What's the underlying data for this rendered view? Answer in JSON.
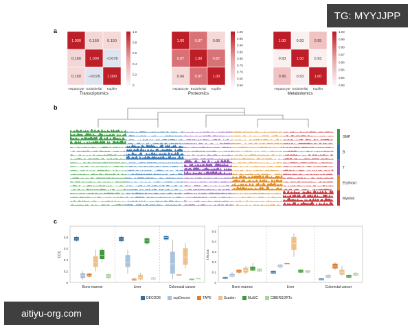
{
  "watermarks": {
    "top_right": "TG: MYYJJPP",
    "bottom_left": "aitiyu-org.com"
  },
  "panels": {
    "a": "a",
    "b": "b",
    "c": "c"
  },
  "chart_data": [
    {
      "type": "heatmap",
      "title": "Transcriptomics",
      "rows": [
        "Hepatocyte",
        "Endothelial",
        "Kupffer"
      ],
      "cols": [
        "Hepatocyte",
        "Endothelial",
        "Kupffer"
      ],
      "values": [
        [
          1.0,
          0.16,
          0.15
        ],
        [
          0.16,
          1.0,
          -0.078
        ],
        [
          0.15,
          -0.078,
          1.0
        ]
      ],
      "labels": [
        [
          "1.000",
          "0.160",
          "0.150"
        ],
        [
          "0.160",
          "1.000",
          "−0.078"
        ],
        [
          "0.150",
          "−0.078",
          "1.000"
        ]
      ],
      "colorbar": {
        "min": 0,
        "max": 1.0,
        "ticks": [
          "1.0",
          "0.8",
          "0.6",
          "0.4",
          "0.2",
          "0"
        ]
      }
    },
    {
      "type": "heatmap",
      "title": "Proteomics",
      "rows": [
        "Hepatocyte",
        "Endothelial",
        "Kupffer"
      ],
      "cols": [
        "Hepatocyte",
        "Endothelial",
        "Kupffer"
      ],
      "values": [
        [
          1.0,
          0.87,
          0.66
        ],
        [
          0.87,
          1.0,
          0.87
        ],
        [
          0.66,
          0.87,
          1.0
        ]
      ],
      "labels": [
        [
          "1.00",
          "0.87",
          "0.66"
        ],
        [
          "0.87",
          "1.00",
          "0.87"
        ],
        [
          "0.66",
          "0.87",
          "1.00"
        ]
      ],
      "colorbar": {
        "min": 0.6,
        "max": 1.0,
        "ticks": [
          "1.00",
          "0.95",
          "0.90",
          "0.85",
          "0.80",
          "0.75",
          "0.70",
          "0.65",
          "0.60"
        ]
      }
    },
    {
      "type": "heatmap",
      "title": "Metabolomics",
      "rows": [
        "Hepatocyte",
        "Endothelial",
        "Kupffer"
      ],
      "cols": [
        "Hepatocyte",
        "Endothelial",
        "Kupffer"
      ],
      "values": [
        [
          1.0,
          0.93,
          0.95
        ],
        [
          0.93,
          1.0,
          0.93
        ],
        [
          0.95,
          0.93,
          1.0
        ]
      ],
      "labels": [
        [
          "1.00",
          "0.93",
          "0.95"
        ],
        [
          "0.93",
          "1.00",
          "0.93"
        ],
        [
          "0.95",
          "0.93",
          "1.00"
        ]
      ],
      "colorbar": {
        "min": 0.93,
        "max": 1.0,
        "ticks": [
          "1.00",
          "0.99",
          "0.98",
          "0.97",
          "0.96",
          "0.95",
          "0.94",
          "0.93"
        ]
      }
    },
    {
      "type": "area",
      "cell_groups": [
        {
          "name": "GMP",
          "color": "#3a9a43"
        },
        {
          "name": "B",
          "color": "#2f74b5"
        },
        {
          "name": "T",
          "color": "#8e5ab5"
        },
        {
          "name": "Erythroid",
          "color": "#e08a23"
        },
        {
          "name": "Myeloid",
          "color": "#c7333a"
        }
      ],
      "rows_per_group": 4,
      "dendrogram": true
    },
    {
      "type": "box",
      "ylabel": "CCC",
      "ylim": [
        0,
        1.0
      ],
      "yticks": [
        "0",
        "0.2",
        "0.4",
        "0.6",
        "0.8"
      ],
      "datasets": [
        "Bone marrow",
        "Liver",
        "Colorectal cancer"
      ],
      "series": [
        {
          "name": "DECODE",
          "boxes": [
            [
              0.72,
              0.75,
              0.77,
              0.8,
              0.83
            ],
            [
              0.7,
              0.74,
              0.77,
              0.8,
              0.84
            ],
            [
              0.74,
              0.77,
              0.8,
              0.82,
              0.84
            ]
          ]
        },
        {
          "name": "scpDeconv",
          "boxes": [
            [
              0.05,
              0.08,
              0.12,
              0.16,
              0.2
            ],
            [
              0.15,
              0.28,
              0.36,
              0.48,
              0.58
            ],
            [
              0.06,
              0.16,
              0.33,
              0.54,
              0.76
            ]
          ]
        },
        {
          "name": "TAPE",
          "boxes": [
            [
              0.08,
              0.11,
              0.13,
              0.15,
              0.17
            ],
            [
              0.03,
              0.04,
              0.05,
              0.06,
              0.08
            ],
            [
              0.13,
              0.13,
              0.14,
              0.14,
              0.15
            ]
          ]
        },
        {
          "name": "Scaden",
          "boxes": [
            [
              0.2,
              0.28,
              0.35,
              0.46,
              0.58
            ],
            [
              0.04,
              0.06,
              0.09,
              0.13,
              0.17
            ],
            [
              0.25,
              0.32,
              0.45,
              0.6,
              0.7
            ]
          ]
        },
        {
          "name": "MuSiC",
          "boxes": [
            [
              0.35,
              0.42,
              0.48,
              0.57,
              0.62
            ],
            [
              0.67,
              0.7,
              0.74,
              0.78,
              0.8
            ],
            [
              0.05,
              0.05,
              0.06,
              0.06,
              0.07
            ]
          ]
        },
        {
          "name": "CIBERSORTx",
          "boxes": [
            [
              0.06,
              0.08,
              0.11,
              0.14,
              0.16
            ],
            [
              0.05,
              0.06,
              0.07,
              0.08,
              0.09
            ],
            [
              0.05,
              0.06,
              0.06,
              0.07,
              0.08
            ]
          ]
        }
      ]
    },
    {
      "type": "box",
      "ylabel": "r.m.s.e.",
      "ylim": [
        0,
        0.55
      ],
      "yticks": [
        "0",
        "0.1",
        "0.2",
        "0.3",
        "0.4",
        "0.5"
      ],
      "datasets": [
        "Bone marrow",
        "Liver",
        "Colorectal cancer"
      ],
      "series": [
        {
          "name": "DECODE",
          "boxes": [
            [
              0.03,
              0.04,
              0.045,
              0.05,
              0.06
            ],
            [
              0.08,
              0.09,
              0.1,
              0.11,
              0.12
            ],
            [
              0.02,
              0.025,
              0.03,
              0.035,
              0.04
            ]
          ]
        },
        {
          "name": "scpDeconv",
          "boxes": [
            [
              0.05,
              0.06,
              0.07,
              0.08,
              0.1
            ],
            [
              0.14,
              0.15,
              0.16,
              0.17,
              0.18
            ],
            [
              0.04,
              0.05,
              0.06,
              0.07,
              0.08
            ]
          ]
        },
        {
          "name": "TAPE",
          "boxes": [
            [
              0.08,
              0.1,
              0.11,
              0.12,
              0.13
            ],
            [
              0.18,
              0.18,
              0.18,
              0.185,
              0.19
            ],
            [
              0.12,
              0.14,
              0.16,
              0.18,
              0.2
            ]
          ]
        },
        {
          "name": "Scaden",
          "boxes": [
            [
              0.08,
              0.1,
              0.12,
              0.14,
              0.16
            ],
            [
              0.25,
              0.32,
              0.38,
              0.44,
              0.48
            ],
            [
              0.06,
              0.08,
              0.1,
              0.12,
              0.16
            ]
          ]
        },
        {
          "name": "MuSiC",
          "boxes": [
            [
              0.11,
              0.12,
              0.13,
              0.15,
              0.19
            ],
            [
              0.09,
              0.1,
              0.11,
              0.12,
              0.13
            ],
            [
              0.04,
              0.05,
              0.06,
              0.07,
              0.08
            ]
          ]
        },
        {
          "name": "CIBERSORTx",
          "boxes": [
            [
              0.1,
              0.11,
              0.12,
              0.13,
              0.14
            ],
            [
              0.09,
              0.1,
              0.11,
              0.115,
              0.12
            ],
            [
              0.06,
              0.07,
              0.08,
              0.09,
              0.1
            ]
          ]
        }
      ]
    }
  ],
  "legend": [
    {
      "name": "DECODE",
      "color": "#2f6f9f"
    },
    {
      "name": "scpDeconv",
      "color": "#a9c3dc"
    },
    {
      "name": "TAPE",
      "color": "#e07e2c"
    },
    {
      "name": "Scaden",
      "color": "#f0c08a"
    },
    {
      "name": "MuSiC",
      "color": "#3d9a3a"
    },
    {
      "name": "CIBERSORTx",
      "color": "#a7d69a"
    }
  ]
}
